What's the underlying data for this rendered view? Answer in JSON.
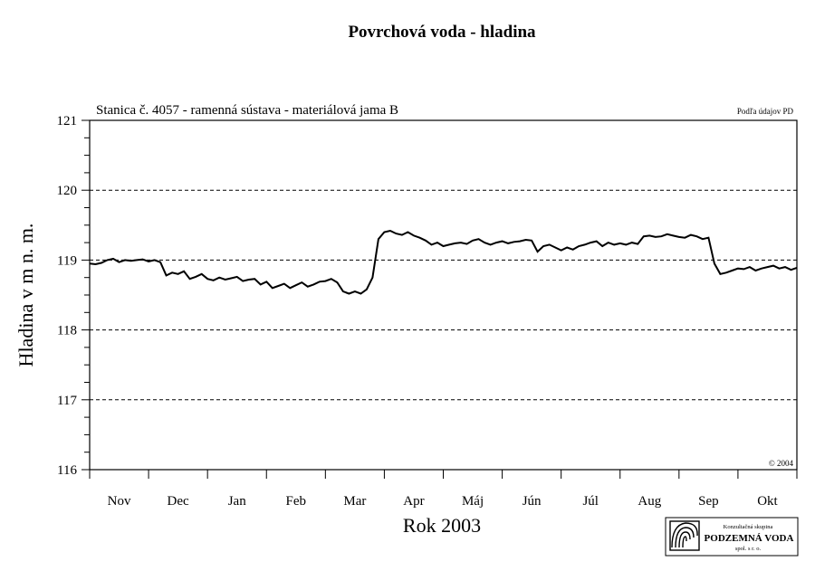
{
  "chart_data": {
    "type": "line",
    "title": "Povrchová voda - hladina",
    "subtitle": "Stanica č. 4057 - ramenná sústava - materiálová jama B",
    "source_note": "Podľa údajov PD",
    "copyright": "© 2004",
    "xlabel": "Rok 2003",
    "ylabel": "Hladina v m n. m.",
    "ylim": [
      116,
      121
    ],
    "yticks": [
      116,
      117,
      118,
      119,
      120,
      121
    ],
    "dashed_gridlines": [
      117,
      118,
      119,
      120
    ],
    "categories": [
      "Nov",
      "Dec",
      "Jan",
      "Feb",
      "Mar",
      "Apr",
      "Máj",
      "Jún",
      "Júl",
      "Aug",
      "Sep",
      "Okt"
    ],
    "line_color": "#000000",
    "series": [
      {
        "x": [
          0.0,
          0.1,
          0.2,
          0.3,
          0.4,
          0.5,
          0.6,
          0.7,
          0.8,
          0.9,
          1.0,
          1.1,
          1.2,
          1.3,
          1.4,
          1.5,
          1.6,
          1.7,
          1.8,
          1.9,
          2.0,
          2.1,
          2.2,
          2.3,
          2.4,
          2.5,
          2.6,
          2.7,
          2.8,
          2.9,
          3.0,
          3.1,
          3.2,
          3.3,
          3.4,
          3.5,
          3.6,
          3.7,
          3.8,
          3.9,
          4.0,
          4.1,
          4.2,
          4.3,
          4.4,
          4.5,
          4.6,
          4.7,
          4.8,
          4.9,
          5.0,
          5.1,
          5.2,
          5.3,
          5.4,
          5.5,
          5.6,
          5.7,
          5.8,
          5.9,
          6.0,
          6.1,
          6.2,
          6.3,
          6.4,
          6.5,
          6.6,
          6.7,
          6.8,
          6.9,
          7.0,
          7.1,
          7.2,
          7.3,
          7.4,
          7.5,
          7.6,
          7.7,
          7.8,
          7.9,
          8.0,
          8.1,
          8.2,
          8.3,
          8.4,
          8.5,
          8.6,
          8.7,
          8.8,
          8.9,
          9.0,
          9.1,
          9.2,
          9.3,
          9.4,
          9.5,
          9.6,
          9.7,
          9.8,
          9.9,
          10.0,
          10.1,
          10.2,
          10.3,
          10.4,
          10.5,
          10.6,
          10.7,
          10.8,
          10.9,
          11.0,
          11.1,
          11.2,
          11.3,
          11.4,
          11.5,
          11.6,
          11.7,
          11.8,
          11.9,
          12.0
        ],
        "y": [
          118.95,
          118.94,
          118.96,
          119.0,
          119.02,
          118.97,
          119.0,
          118.99,
          119.0,
          119.01,
          118.98,
          119.0,
          118.97,
          118.78,
          118.82,
          118.8,
          118.84,
          118.73,
          118.76,
          118.8,
          118.73,
          118.71,
          118.75,
          118.72,
          118.74,
          118.76,
          118.7,
          118.72,
          118.73,
          118.65,
          118.69,
          118.6,
          118.63,
          118.66,
          118.6,
          118.64,
          118.68,
          118.62,
          118.65,
          118.69,
          118.7,
          118.73,
          118.68,
          118.55,
          118.52,
          118.55,
          118.52,
          118.58,
          118.75,
          119.3,
          119.4,
          119.42,
          119.38,
          119.36,
          119.4,
          119.35,
          119.32,
          119.28,
          119.22,
          119.25,
          119.2,
          119.22,
          119.24,
          119.25,
          119.23,
          119.28,
          119.3,
          119.25,
          119.22,
          119.25,
          119.27,
          119.24,
          119.26,
          119.27,
          119.29,
          119.28,
          119.12,
          119.2,
          119.22,
          119.18,
          119.14,
          119.18,
          119.15,
          119.2,
          119.22,
          119.25,
          119.27,
          119.2,
          119.25,
          119.22,
          119.24,
          119.22,
          119.25,
          119.23,
          119.34,
          119.35,
          119.33,
          119.34,
          119.37,
          119.35,
          119.33,
          119.32,
          119.36,
          119.34,
          119.3,
          119.32,
          118.95,
          118.8,
          118.82,
          118.85,
          118.88,
          118.87,
          118.9,
          118.85,
          118.88,
          118.9,
          118.92,
          118.88,
          118.9,
          118.86,
          118.89
        ]
      }
    ]
  },
  "logo": {
    "line1": "Konzultačná skupina",
    "line2": "PODZEMNÁ VODA",
    "line3": "spol. s r. o."
  }
}
